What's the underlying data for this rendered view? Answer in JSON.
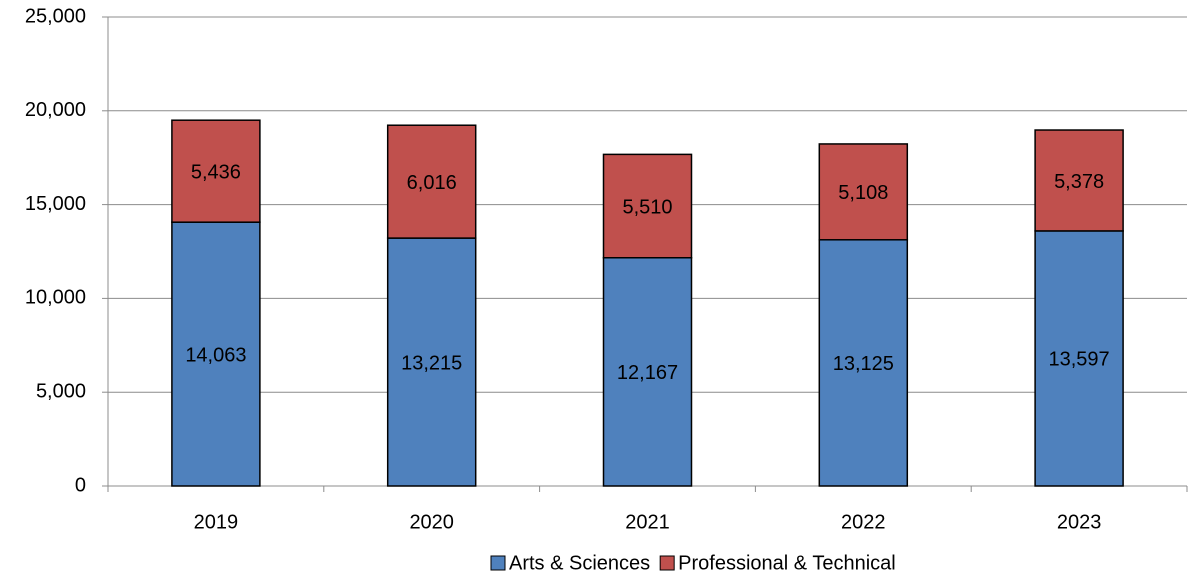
{
  "chart_data": {
    "type": "stacked_bar",
    "categories": [
      "2019",
      "2020",
      "2021",
      "2022",
      "2023"
    ],
    "series": [
      {
        "name": "Arts & Sciences",
        "color": "#4f81bd",
        "values": [
          14063,
          13215,
          12167,
          13125,
          13597
        ],
        "value_labels": [
          "14,063",
          "13,215",
          "12,167",
          "13,125",
          "13,597"
        ]
      },
      {
        "name": "Professional & Technical",
        "color": "#c0504d",
        "values": [
          5436,
          6016,
          5510,
          5108,
          5378
        ],
        "value_labels": [
          "5,436",
          "6,016",
          "5,510",
          "5,108",
          "5,378"
        ]
      }
    ],
    "ylim": [
      0,
      25000
    ],
    "yticks": [
      0,
      {
        "value": 5000,
        "label": "5,000"
      },
      {
        "value": 10000,
        "label": "10,000"
      },
      {
        "value": 15000,
        "label": "15,000"
      },
      {
        "value": 20000,
        "label": "20,000"
      },
      {
        "value": 25000,
        "label": "25,000"
      }
    ],
    "grid": true,
    "legend": "bottom"
  }
}
